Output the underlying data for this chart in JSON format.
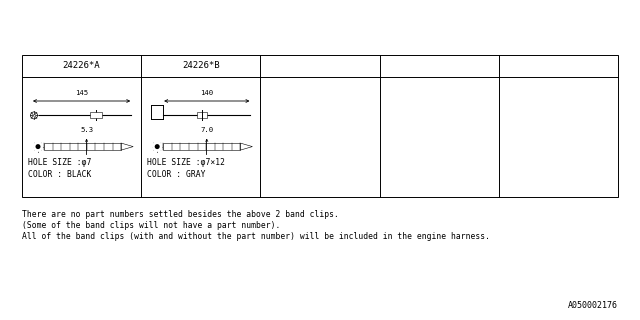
{
  "bg_color": "#ffffff",
  "border_color": "#000000",
  "header_labels": [
    "24226*A",
    "24226*B",
    "",
    "",
    ""
  ],
  "part_A": {
    "dim_top": "145",
    "dim_side": "5.3",
    "hole_size": "HOLE SIZE :φ7",
    "color_label": "COLOR : BLACK"
  },
  "part_B": {
    "dim_top": "140",
    "dim_side": "7.0",
    "hole_size": "HOLE SIZE :φ7×12",
    "color_label": "COLOR : GRAY"
  },
  "footer_lines": [
    "There are no part numbers settled besides the above 2 band clips.",
    "(Some of the band clips will not have a part number).",
    "All of the band clips (with and without the part number) will be included in the engine harness."
  ],
  "ref_number": "A050002176",
  "font_size_header": 6.5,
  "font_size_body": 5.8,
  "font_size_footer": 5.8,
  "font_size_ref": 6.0,
  "font_size_dim": 5.2
}
